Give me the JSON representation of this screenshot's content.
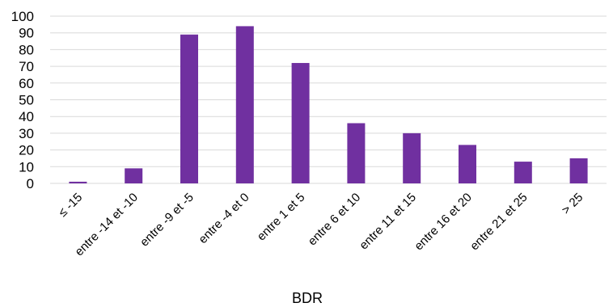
{
  "chart_data": {
    "type": "bar",
    "title": "",
    "xlabel": "BDR",
    "ylabel": "",
    "ylim": [
      0,
      100
    ],
    "yticks": [
      0,
      10,
      20,
      30,
      40,
      50,
      60,
      70,
      80,
      90,
      100
    ],
    "grid": true,
    "legend": "none",
    "categories": [
      "≤ -15",
      "entre -14 et -10",
      "entre -9 et -5",
      "entre -4 et 0",
      "entre 1 et 5",
      "entre 6 et 10",
      "entre 11 et 15",
      "entre 16 et 20",
      "entre 21 et 25",
      "> 25"
    ],
    "values": [
      1,
      9,
      89,
      94,
      72,
      36,
      30,
      23,
      13,
      15
    ],
    "colors": {
      "bar": "#7030A0",
      "grid": "#d9d9d9",
      "axis": "#d9d9d9"
    }
  }
}
